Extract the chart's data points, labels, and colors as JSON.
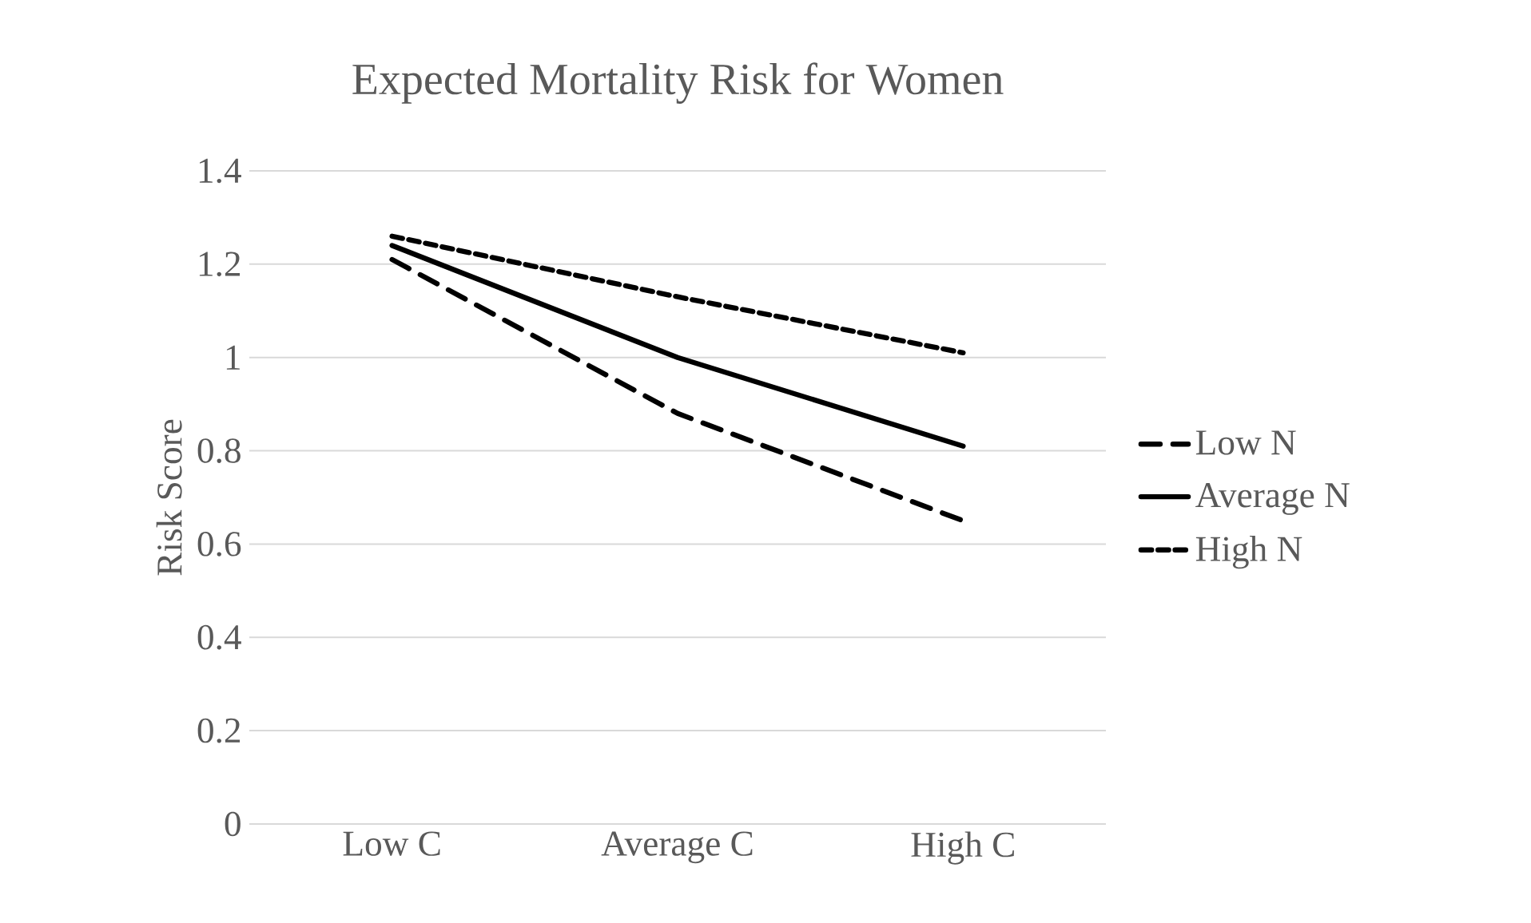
{
  "chart_data": {
    "type": "line",
    "title": "Expected Mortality Risk for Women",
    "ylabel": "Risk Score",
    "categories": [
      "Low C",
      "Average C",
      "High C"
    ],
    "series": [
      {
        "name": "Low N",
        "color": "#000000",
        "line_style": "dashed",
        "values": [
          1.21,
          0.88,
          0.65
        ]
      },
      {
        "name": "Average N",
        "color": "#000000",
        "line_style": "solid",
        "values": [
          1.24,
          1.0,
          0.81
        ]
      },
      {
        "name": "High N",
        "color": "#000000",
        "line_style": "dotted",
        "values": [
          1.26,
          1.13,
          1.01
        ]
      }
    ],
    "ylim": [
      0,
      1.4
    ],
    "yticks": [
      0,
      0.2,
      0.4,
      0.6,
      0.8,
      1,
      1.2,
      1.4
    ],
    "grid": "y",
    "legend": "right"
  }
}
